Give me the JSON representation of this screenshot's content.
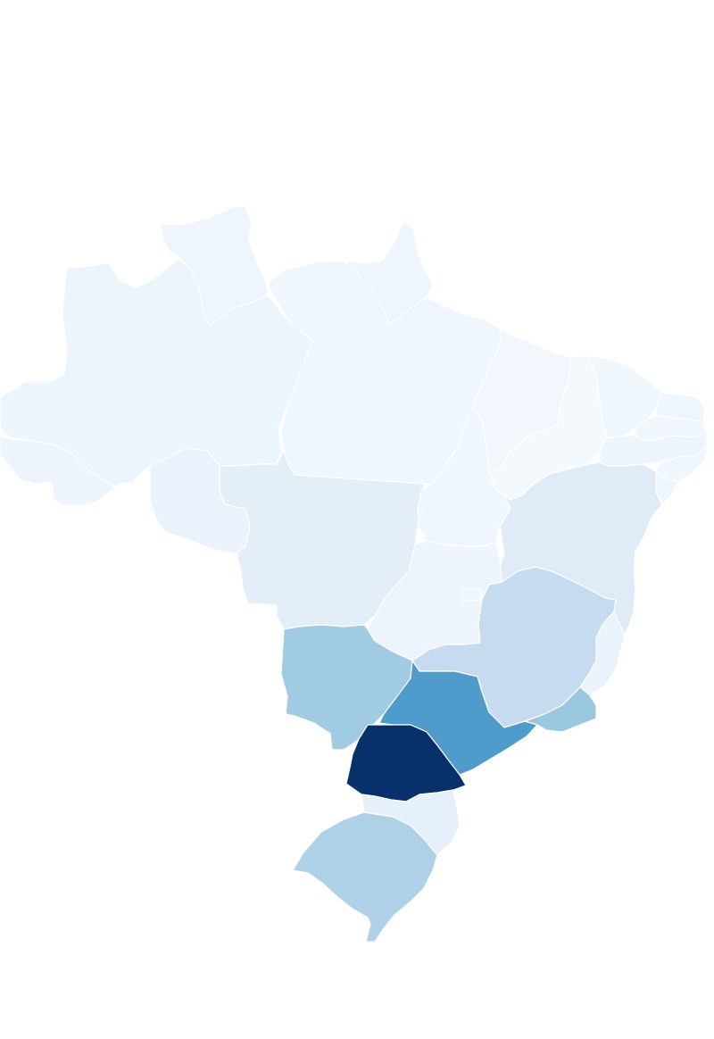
{
  "map": {
    "country": "Brazil",
    "type": "choropleth",
    "color_scheme": "Blues",
    "background": "#ffffff",
    "states": [
      {
        "code": "RR",
        "level": 0.03,
        "color": "#eef5fc"
      },
      {
        "code": "AP",
        "level": 0.03,
        "color": "#eef5fc"
      },
      {
        "code": "AM",
        "level": 0.05,
        "color": "#ecf4fc"
      },
      {
        "code": "PA",
        "level": 0.03,
        "color": "#f0f6fd"
      },
      {
        "code": "AC",
        "level": 0.04,
        "color": "#edf4fc"
      },
      {
        "code": "RO",
        "level": 0.08,
        "color": "#eaf2fb"
      },
      {
        "code": "MT",
        "level": 0.12,
        "color": "#e3eef9"
      },
      {
        "code": "TO",
        "level": 0.03,
        "color": "#f0f6fd"
      },
      {
        "code": "MA",
        "level": 0.03,
        "color": "#f2f7fd"
      },
      {
        "code": "PI",
        "level": 0.02,
        "color": "#f4f9fe"
      },
      {
        "code": "CE",
        "level": 0.03,
        "color": "#eff6fc"
      },
      {
        "code": "RN",
        "level": 0.03,
        "color": "#eef5fc"
      },
      {
        "code": "PB",
        "level": 0.03,
        "color": "#eff6fc"
      },
      {
        "code": "PE",
        "level": 0.04,
        "color": "#edf4fc"
      },
      {
        "code": "AL",
        "level": 0.03,
        "color": "#eff6fc"
      },
      {
        "code": "SE",
        "level": 0.03,
        "color": "#eef5fc"
      },
      {
        "code": "BA",
        "level": 0.14,
        "color": "#dfebf7"
      },
      {
        "code": "GO",
        "level": 0.05,
        "color": "#edf4fc"
      },
      {
        "code": "DF",
        "level": 0.03,
        "color": "#f0f6fd"
      },
      {
        "code": "MG",
        "level": 0.25,
        "color": "#c6dbef"
      },
      {
        "code": "ES",
        "level": 0.06,
        "color": "#eaf3fb"
      },
      {
        "code": "MS",
        "level": 0.4,
        "color": "#a1cbe2"
      },
      {
        "code": "SP",
        "level": 0.65,
        "color": "#4f9bcb"
      },
      {
        "code": "RJ",
        "level": 0.42,
        "color": "#9ac8e0"
      },
      {
        "code": "PR",
        "level": 1.0,
        "color": "#08306b"
      },
      {
        "code": "SC",
        "level": 0.1,
        "color": "#e6f0fa"
      },
      {
        "code": "RS",
        "level": 0.36,
        "color": "#aed1e7"
      }
    ]
  }
}
